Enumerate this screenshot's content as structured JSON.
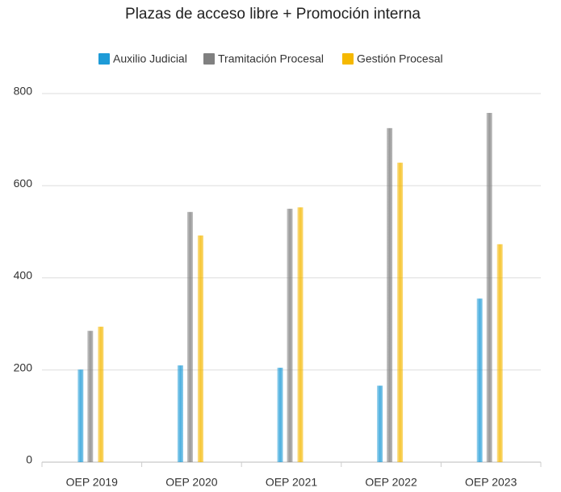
{
  "chart_data": {
    "type": "bar",
    "title": "Plazas de acceso libre + Promoción interna",
    "categories": [
      "OEP 2019",
      "OEP 2020",
      "OEP 2021",
      "OEP 2022",
      "OEP 2023"
    ],
    "series": [
      {
        "name": "Auxilio Judicial",
        "color": "#1e9bd7",
        "values": [
          201,
          210,
          205,
          166,
          355
        ]
      },
      {
        "name": "Tramitación Procesal",
        "color": "#808080",
        "values": [
          285,
          543,
          550,
          725,
          758
        ]
      },
      {
        "name": "Gestión Procesal",
        "color": "#f5b800",
        "values": [
          294,
          492,
          553,
          650,
          473
        ]
      }
    ],
    "ylim": [
      0,
      800
    ],
    "yticks": [
      0,
      200,
      400,
      600,
      800
    ],
    "grid": true,
    "legend": "top"
  }
}
